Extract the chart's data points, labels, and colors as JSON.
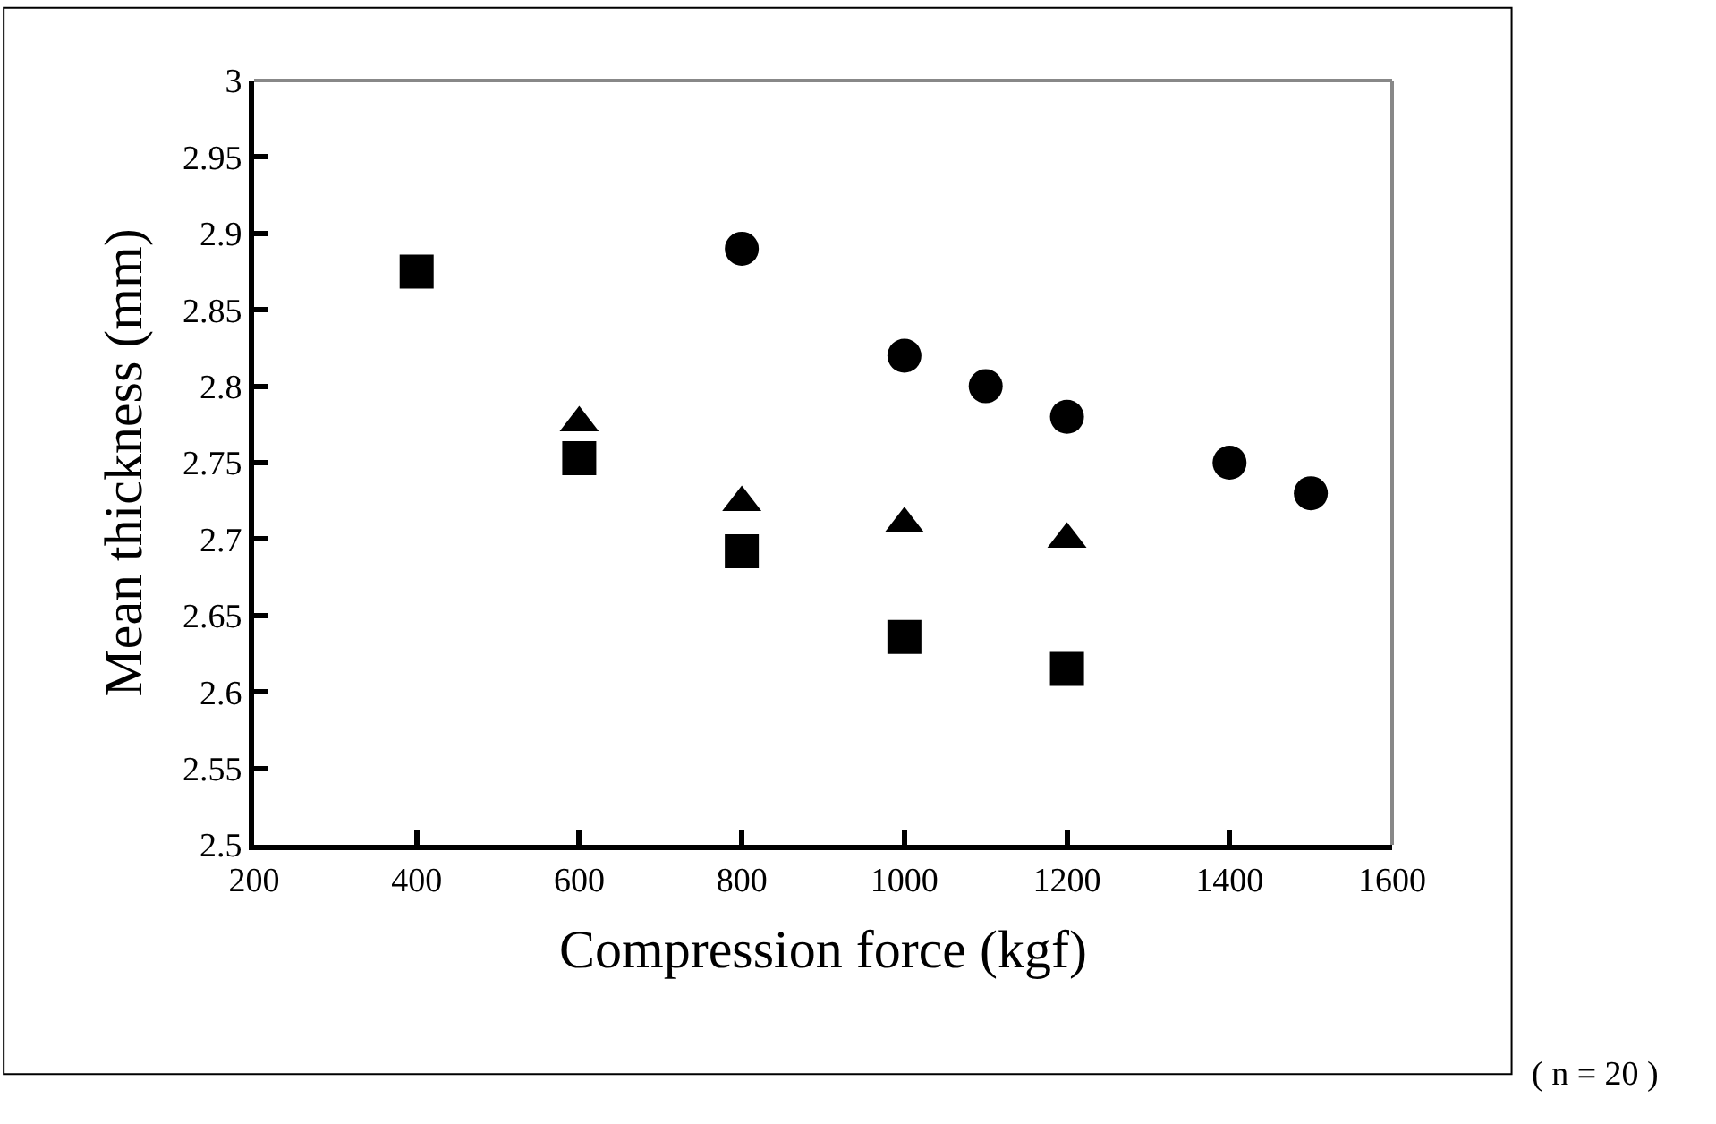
{
  "chart_data": {
    "type": "scatter",
    "xlabel": "Compression force (kgf)",
    "ylabel": "Mean thickness (mm)",
    "annotations": [
      "( n = 20 )"
    ],
    "xlim": [
      200,
      1600
    ],
    "xticks": [
      200,
      400,
      600,
      800,
      1000,
      1200,
      1400,
      1600
    ],
    "ylim": [
      2.5,
      3
    ],
    "yticks": [
      2.5,
      2.55,
      2.6,
      2.65,
      2.7,
      2.75,
      2.8,
      2.85,
      2.9,
      2.95,
      3
    ],
    "series": [
      {
        "color": "#000000",
        "marker": "circle",
        "x": [
          800,
          1000,
          1100,
          1200,
          1400,
          1500
        ],
        "values": [
          2.89,
          2.82,
          2.8,
          2.78,
          2.75,
          2.73
        ]
      },
      {
        "color": "#000000",
        "marker": "triangle",
        "x": [
          600,
          800,
          1000,
          1200
        ],
        "values": [
          2.776,
          2.724,
          2.71,
          2.7
        ]
      },
      {
        "color": "#000000",
        "marker": "square",
        "x": [
          400,
          600,
          800,
          1000,
          1200
        ],
        "values": [
          2.875,
          2.753,
          2.692,
          2.636,
          2.615
        ]
      }
    ]
  }
}
